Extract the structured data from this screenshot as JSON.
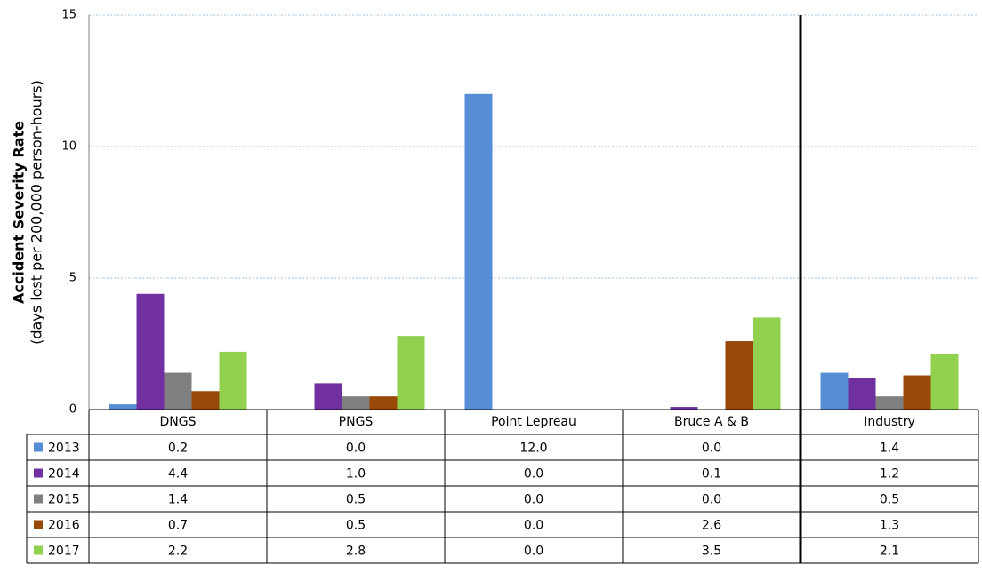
{
  "chart_data": {
    "type": "bar",
    "y_label": "Accident Severity Rate",
    "y_sublabel": "(days lost per 200,000 person-hours)",
    "categories": [
      "DNGS",
      "PNGS",
      "Point Lepreau",
      "Bruce A & B",
      "Industry"
    ],
    "series": [
      {
        "name": "2013",
        "color": "#558ed5",
        "values": [
          0.2,
          0.0,
          12.0,
          0.0,
          1.4
        ],
        "value_labels": [
          "0.2",
          "0.0",
          "12.0",
          "0.0",
          "1.4"
        ]
      },
      {
        "name": "2014",
        "color": "#7030a0",
        "values": [
          4.4,
          1.0,
          0.0,
          0.1,
          1.2
        ],
        "value_labels": [
          "4.4",
          "1.0",
          "0.0",
          "0.1",
          "1.2"
        ]
      },
      {
        "name": "2015",
        "color": "#7f7f7f",
        "values": [
          1.4,
          0.5,
          0.0,
          0.0,
          0.5
        ],
        "value_labels": [
          "1.4",
          "0.5",
          "0.0",
          "0.0",
          "0.5"
        ]
      },
      {
        "name": "2016",
        "color": "#984807",
        "values": [
          0.7,
          0.5,
          0.0,
          2.6,
          1.3
        ],
        "value_labels": [
          "0.7",
          "0.5",
          "0.0",
          "2.6",
          "1.3"
        ]
      },
      {
        "name": "2017",
        "color": "#92d050",
        "values": [
          2.2,
          2.8,
          0.0,
          3.5,
          2.1
        ],
        "value_labels": [
          "2.2",
          "2.8",
          "0.0",
          "3.5",
          "2.1"
        ]
      }
    ],
    "ylim": [
      0,
      15
    ],
    "yticks": [
      0,
      5,
      10,
      15
    ],
    "grid": true
  }
}
